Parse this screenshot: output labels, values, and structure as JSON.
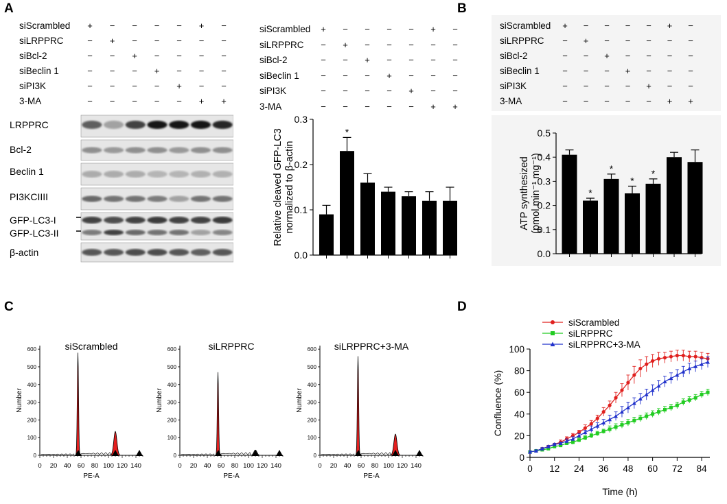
{
  "panels": {
    "a": "A",
    "b": "B",
    "c": "C",
    "d": "D"
  },
  "condition_rows": [
    "siScrambled",
    "siLRPPRC",
    "siBcl-2",
    "siBeclin 1",
    "siPI3K",
    "3-MA"
  ],
  "condition_matrix": [
    [
      "+",
      "−",
      "−",
      "−",
      "−",
      "+",
      "−"
    ],
    [
      "−",
      "+",
      "−",
      "−",
      "−",
      "−",
      "−"
    ],
    [
      "−",
      "−",
      "+",
      "−",
      "−",
      "−",
      "−"
    ],
    [
      "−",
      "−",
      "−",
      "+",
      "−",
      "−",
      "−"
    ],
    [
      "−",
      "−",
      "−",
      "−",
      "+",
      "−",
      "−"
    ],
    [
      "−",
      "−",
      "−",
      "−",
      "−",
      "+",
      "+"
    ]
  ],
  "blot": {
    "labels": [
      "LRPPRC",
      "Bcl-2",
      "Beclin 1",
      "PI3KCIIII",
      "GFP-LC3-I",
      "GFP-LC3-II",
      "β-actin"
    ]
  },
  "chart_data": [
    {
      "id": "lc3",
      "type": "bar",
      "title": "",
      "ylabel_line1": "Relative cleaved GFP-LC3",
      "ylabel_line2": "normalized to  β-actin",
      "ylim": [
        0,
        0.3
      ],
      "yticks": [
        "0.0",
        "0.1",
        "0.2",
        "0.3"
      ],
      "values": [
        0.09,
        0.23,
        0.16,
        0.14,
        0.13,
        0.12,
        0.12
      ],
      "errors": [
        0.02,
        0.03,
        0.02,
        0.01,
        0.01,
        0.02,
        0.03
      ],
      "significance": [
        "",
        "*",
        "",
        "",
        "",
        "",
        ""
      ]
    },
    {
      "id": "atp",
      "type": "bar",
      "ylabel_line1": "ATP synthesized",
      "ylabel_line2": "(pmol min⁻¹ mg⁻¹)",
      "ylim": [
        0,
        0.5
      ],
      "yticks": [
        "0.0",
        "0.1",
        "0.2",
        "0.3",
        "0.4",
        "0.5"
      ],
      "values": [
        0.41,
        0.22,
        0.31,
        0.25,
        0.29,
        0.4,
        0.38
      ],
      "errors": [
        0.02,
        0.01,
        0.02,
        0.03,
        0.02,
        0.02,
        0.05
      ],
      "significance": [
        "",
        "*",
        "*",
        "*",
        "*",
        "",
        ""
      ]
    },
    {
      "id": "flow",
      "type": "histogram",
      "ylabel": "Number",
      "xlabel": "PE-A",
      "xticks": [
        "0",
        "20",
        "40",
        "60",
        "80",
        "100",
        "120",
        "140"
      ],
      "yticks": [
        "0",
        "100",
        "200",
        "300",
        "400",
        "500",
        "600"
      ],
      "plots": [
        {
          "title": "siScrambled",
          "g1_peak": 580,
          "g2_peak": 135
        },
        {
          "title": "siLRPPRC",
          "g1_peak": 470,
          "g2_peak": 30
        },
        {
          "title": "siLRPPRC+3-MA",
          "g1_peak": 560,
          "g2_peak": 120
        }
      ]
    },
    {
      "id": "confluence",
      "type": "line",
      "xlabel": "Time (h)",
      "ylabel": "Confluence (%)",
      "xlim": [
        0,
        88
      ],
      "ylim": [
        0,
        100
      ],
      "xticks": [
        "0",
        "12",
        "24",
        "36",
        "48",
        "60",
        "72",
        "84"
      ],
      "yticks": [
        "0",
        "20",
        "40",
        "60",
        "80",
        "100"
      ],
      "x": [
        0,
        3,
        6,
        9,
        12,
        15,
        18,
        21,
        24,
        27,
        30,
        33,
        36,
        39,
        42,
        45,
        48,
        51,
        54,
        57,
        60,
        63,
        66,
        69,
        72,
        75,
        78,
        81,
        84,
        87
      ],
      "series": [
        {
          "name": "siScrambled",
          "color": "#e0201e",
          "marker": "circle",
          "values": [
            5,
            6,
            8,
            10,
            12,
            14,
            17,
            20,
            23,
            27,
            31,
            36,
            42,
            48,
            55,
            62,
            69,
            76,
            82,
            86,
            89,
            91,
            92,
            93,
            94,
            94,
            93,
            93,
            92,
            91
          ],
          "errors": [
            1,
            1,
            1,
            1,
            1,
            2,
            2,
            2,
            2,
            3,
            3,
            3,
            4,
            4,
            5,
            6,
            7,
            8,
            8,
            7,
            6,
            6,
            5,
            5,
            5,
            5,
            5,
            5,
            5,
            5
          ]
        },
        {
          "name": "siLRPPRC",
          "color": "#22cc22",
          "marker": "square",
          "values": [
            5,
            6,
            7,
            8,
            10,
            11,
            13,
            14,
            16,
            18,
            20,
            22,
            24,
            26,
            28,
            30,
            32,
            34,
            36,
            38,
            40,
            42,
            44,
            46,
            48,
            51,
            53,
            55,
            58,
            60
          ],
          "errors": [
            1,
            1,
            1,
            1,
            1,
            1,
            1,
            2,
            2,
            2,
            2,
            2,
            2,
            3,
            3,
            3,
            3,
            3,
            3,
            3,
            3,
            3,
            3,
            3,
            3,
            3,
            3,
            3,
            3,
            3
          ]
        },
        {
          "name": "siLRPPRC+3-MA",
          "color": "#2233cc",
          "marker": "triangle",
          "values": [
            5,
            6,
            8,
            10,
            12,
            13,
            15,
            17,
            20,
            23,
            26,
            29,
            32,
            35,
            38,
            42,
            46,
            50,
            54,
            58,
            62,
            66,
            70,
            73,
            76,
            79,
            82,
            84,
            86,
            88
          ],
          "errors": [
            1,
            1,
            1,
            1,
            1,
            1,
            2,
            2,
            2,
            2,
            3,
            3,
            3,
            4,
            4,
            5,
            5,
            5,
            5,
            5,
            5,
            5,
            5,
            5,
            5,
            5,
            5,
            5,
            5,
            5
          ]
        }
      ]
    }
  ]
}
